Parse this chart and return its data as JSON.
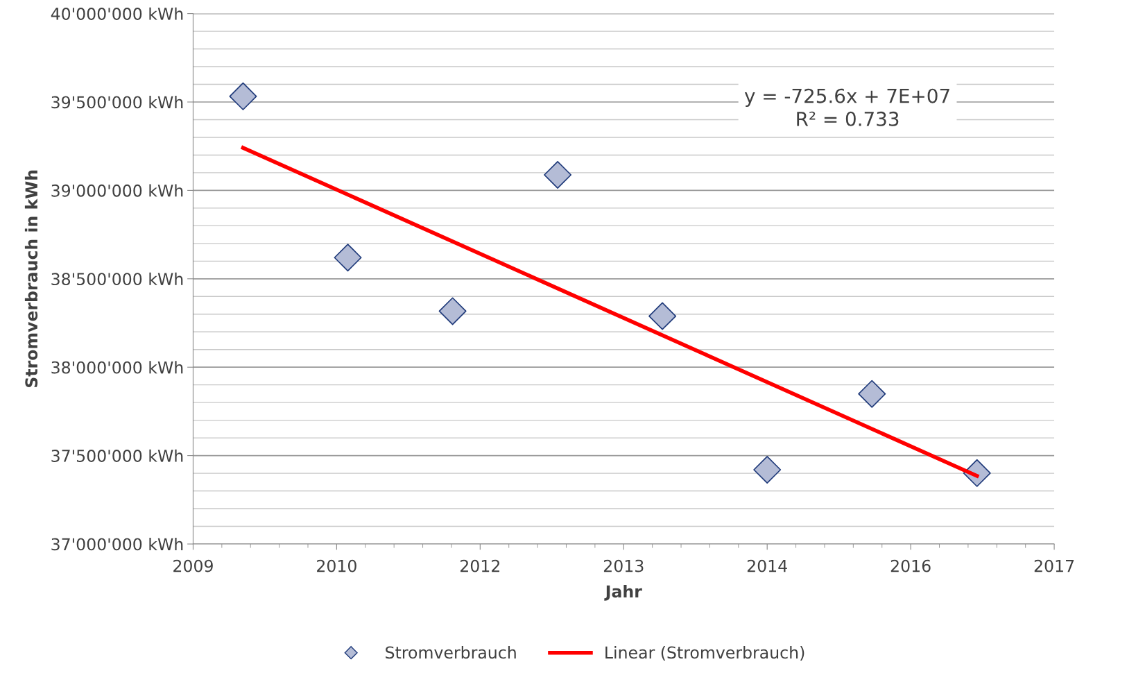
{
  "chart_data": {
    "type": "scatter",
    "xlabel": "Jahr",
    "ylabel": "Stromverbrauch in kWh",
    "x": [
      "2009-12-31",
      "2010-12-31",
      "2011-12-31",
      "2012-12-31",
      "2013-12-31",
      "2014-12-31",
      "2015-12-31",
      "2016-12-31"
    ],
    "series": [
      {
        "name": "Stromverbrauch",
        "marker": "diamond",
        "color": "#b4bcd6",
        "values": [
          39532000,
          38620000,
          38317000,
          39088000,
          38289000,
          37420000,
          37849000,
          37401000
        ]
      },
      {
        "name": "Linear (Stromverbrauch)",
        "type": "line",
        "marker": "none",
        "color": "#ff0000",
        "x": [
          "2009-12-31",
          "2016-12-31"
        ],
        "values": [
          39241000,
          37385000
        ]
      }
    ],
    "xlim": [
      "2009-07-10",
      "2017-09-26"
    ],
    "xticks": [
      {
        "value": "2009-07-10",
        "label": "2009"
      },
      {
        "value": "2010-11-22",
        "label": "2010"
      },
      {
        "value": "2012-04-05",
        "label": "2012"
      },
      {
        "value": "2013-08-18",
        "label": "2013"
      },
      {
        "value": "2014-12-31",
        "label": "2014"
      },
      {
        "value": "2016-05-14",
        "label": "2016"
      },
      {
        "value": "2017-09-26",
        "label": "2017"
      }
    ],
    "ylim": [
      37000000,
      40000000
    ],
    "yticks": [
      {
        "value": 37000000,
        "label": "37'000'000 kWh"
      },
      {
        "value": 37500000,
        "label": "37'500'000 kWh"
      },
      {
        "value": 38000000,
        "label": "38'000'000 kWh"
      },
      {
        "value": 38500000,
        "label": "38'500'000 kWh"
      },
      {
        "value": 39000000,
        "label": "39'000'000 kWh"
      },
      {
        "value": 39500000,
        "label": "39'500'000 kWh"
      },
      {
        "value": 40000000,
        "label": "40'000'000 kWh"
      }
    ],
    "annotations": [
      "y = -725.6x + 7E+07\nR² = 0.733"
    ],
    "grid": "y",
    "legend": "bottom"
  }
}
